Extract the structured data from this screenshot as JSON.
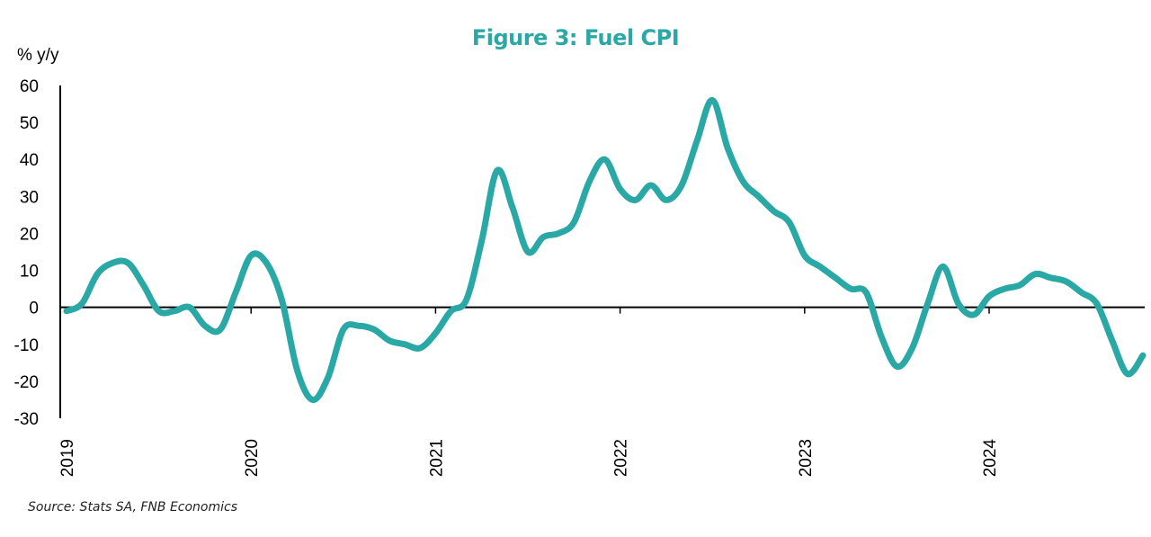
{
  "colors": {
    "line": "#2aa8a6",
    "title": "#2aa8a6",
    "axis": "#000000",
    "text": "#000000"
  },
  "chart_data": {
    "type": "line",
    "title": "Figure 3: Fuel CPI",
    "ylabel": "% y/y",
    "xlabel": "",
    "ylim": [
      -30,
      60
    ],
    "yticks": [
      60,
      50,
      40,
      30,
      20,
      10,
      0,
      -10,
      -20,
      -30
    ],
    "xlim": [
      "2019-01",
      "2024-11"
    ],
    "xticks": [
      "2019",
      "2020",
      "2021",
      "2022",
      "2023",
      "2024"
    ],
    "grid": false,
    "legend": "none",
    "source": "Source: Stats SA, FNB Economics",
    "series": [
      {
        "x": [
          "2019-01",
          "2019-02",
          "2019-03",
          "2019-04",
          "2019-05",
          "2019-06",
          "2019-07",
          "2019-08",
          "2019-09",
          "2019-10",
          "2019-11",
          "2019-12",
          "2020-01",
          "2020-02",
          "2020-03",
          "2020-04",
          "2020-05",
          "2020-06",
          "2020-07",
          "2020-08",
          "2020-09",
          "2020-10",
          "2020-11",
          "2020-12",
          "2021-01",
          "2021-02",
          "2021-03",
          "2021-04",
          "2021-05",
          "2021-06",
          "2021-07",
          "2021-08",
          "2021-09",
          "2021-10",
          "2021-11",
          "2021-12",
          "2022-01",
          "2022-02",
          "2022-03",
          "2022-04",
          "2022-05",
          "2022-06",
          "2022-07",
          "2022-08",
          "2022-09",
          "2022-10",
          "2022-11",
          "2022-12",
          "2023-01",
          "2023-02",
          "2023-03",
          "2023-04",
          "2023-05",
          "2023-06",
          "2023-07",
          "2023-08",
          "2023-09",
          "2023-10",
          "2023-11",
          "2023-12",
          "2024-01",
          "2024-02",
          "2024-03",
          "2024-04",
          "2024-05",
          "2024-06",
          "2024-07",
          "2024-08",
          "2024-09",
          "2024-10",
          "2024-11"
        ],
        "values": [
          -1,
          1,
          9,
          12,
          12,
          6,
          -1,
          -1,
          0,
          -5,
          -6,
          4,
          14,
          12,
          2,
          -17,
          -25,
          -19,
          -6,
          -5,
          -6,
          -9,
          -10,
          -11,
          -7,
          -1,
          2,
          18,
          37,
          27,
          15,
          19,
          20,
          23,
          34,
          40,
          32,
          29,
          33,
          29,
          33,
          45,
          56,
          43,
          34,
          30,
          26,
          23,
          14,
          11,
          8,
          5,
          4,
          -8,
          -16,
          -11,
          1,
          11,
          1,
          -2,
          3,
          5,
          6,
          9,
          8,
          7,
          4,
          1,
          -9,
          -18,
          -13
        ]
      }
    ]
  }
}
